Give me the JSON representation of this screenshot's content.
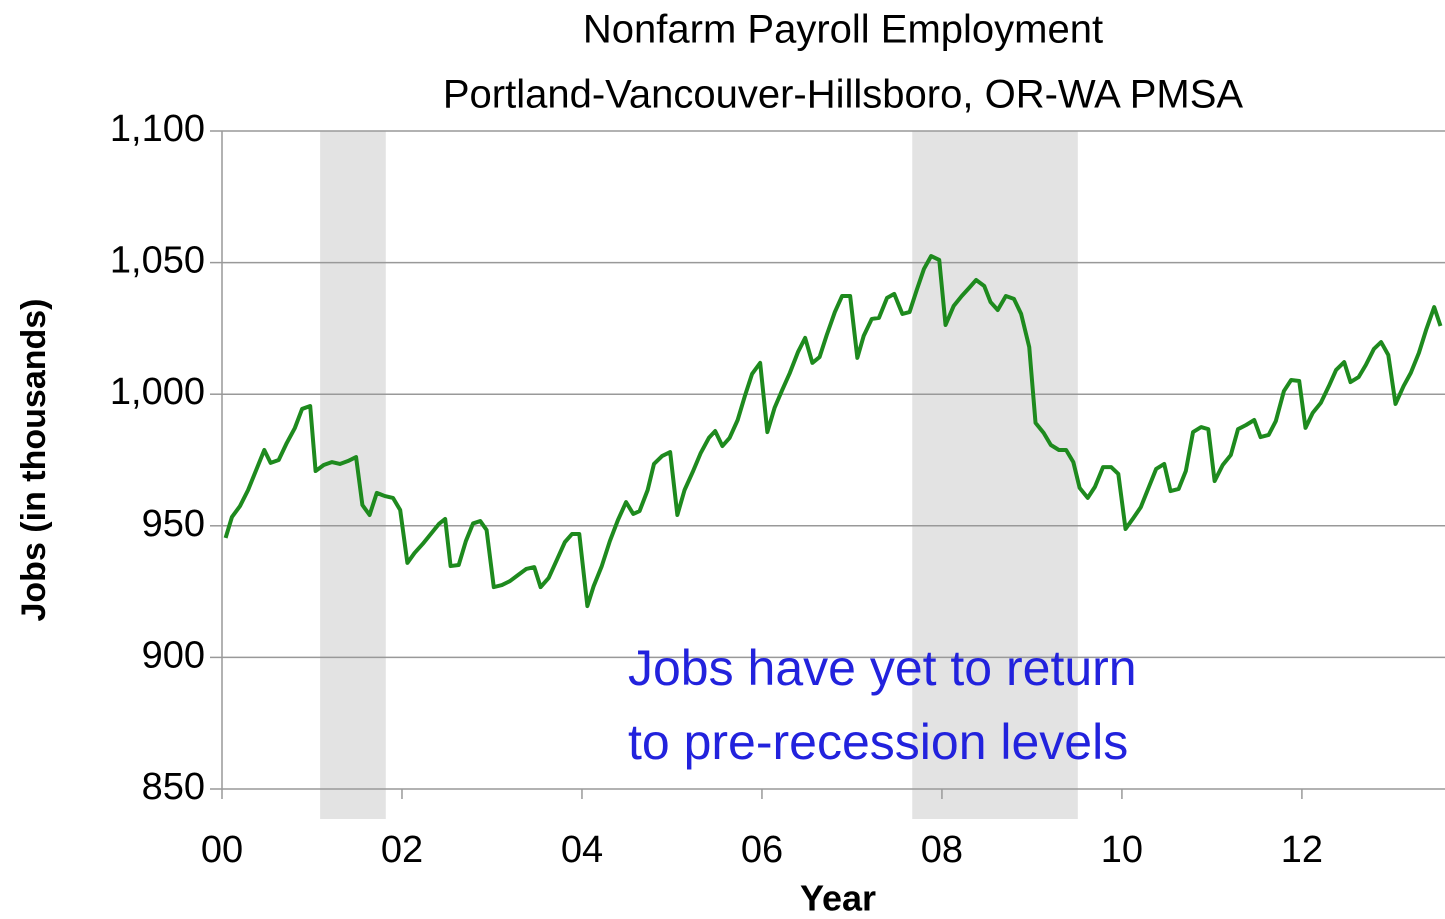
{
  "chart_data": {
    "type": "line",
    "title": "Nonfarm  Payroll Employment",
    "subtitle": "Portland-Vancouver-Hillsboro, OR-WA PMSA",
    "xlabel": "Year",
    "ylabel": "Jobs (in thousands)",
    "annotation": [
      "Jobs have yet to return",
      "to pre-recession levels"
    ],
    "annotation_color": "#2222dd",
    "grid": true,
    "xlim": [
      0,
      13.59
    ],
    "xticks": [
      {
        "value": 0,
        "label": "00"
      },
      {
        "value": 2,
        "label": "02"
      },
      {
        "value": 4,
        "label": "04"
      },
      {
        "value": 6,
        "label": "06"
      },
      {
        "value": 8,
        "label": "08"
      },
      {
        "value": 10,
        "label": "10"
      },
      {
        "value": 12,
        "label": "12"
      }
    ],
    "ylim": [
      850,
      1100
    ],
    "yticks": [
      {
        "value": 850,
        "label": "850"
      },
      {
        "value": 900,
        "label": "900"
      },
      {
        "value": 950,
        "label": "950"
      },
      {
        "value": 1000,
        "label": "1,000"
      },
      {
        "value": 1050,
        "label": "1,050"
      },
      {
        "value": 1100,
        "label": "1,100"
      }
    ],
    "shaded_regions": [
      [
        1.09,
        1.82
      ],
      [
        7.67,
        9.51
      ]
    ],
    "shade_color": "#e3e3e3",
    "x": [
      0.04,
      0.11,
      0.2,
      0.29,
      0.38,
      0.47,
      0.54,
      0.63,
      0.72,
      0.81,
      0.89,
      0.98,
      1.04,
      1.13,
      1.22,
      1.31,
      1.4,
      1.49,
      1.56,
      1.64,
      1.72,
      1.81,
      1.9,
      1.98,
      2.06,
      2.14,
      2.23,
      2.32,
      2.41,
      2.48,
      2.54,
      2.63,
      2.71,
      2.79,
      2.87,
      2.94,
      3.02,
      3.11,
      3.2,
      3.29,
      3.38,
      3.47,
      3.54,
      3.63,
      3.72,
      3.81,
      3.89,
      3.97,
      4.06,
      4.13,
      4.22,
      4.31,
      4.4,
      4.49,
      4.57,
      4.64,
      4.73,
      4.8,
      4.89,
      4.98,
      5.06,
      5.14,
      5.23,
      5.32,
      5.41,
      5.48,
      5.56,
      5.64,
      5.73,
      5.81,
      5.89,
      5.98,
      6.06,
      6.14,
      6.22,
      6.31,
      6.4,
      6.48,
      6.56,
      6.64,
      6.72,
      6.81,
      6.89,
      6.98,
      7.06,
      7.13,
      7.22,
      7.3,
      7.39,
      7.47,
      7.56,
      7.64,
      7.72,
      7.8,
      7.88,
      7.97,
      8.04,
      8.13,
      8.22,
      8.3,
      8.38,
      8.47,
      8.54,
      8.62,
      8.71,
      8.8,
      8.88,
      8.97,
      9.04,
      9.13,
      9.21,
      9.3,
      9.38,
      9.46,
      9.53,
      9.62,
      9.7,
      9.79,
      9.88,
      9.96,
      10.04,
      10.12,
      10.21,
      10.3,
      10.38,
      10.47,
      10.54,
      10.63,
      10.71,
      10.79,
      10.88,
      10.96,
      11.03,
      11.12,
      11.21,
      11.29,
      11.38,
      11.47,
      11.54,
      11.63,
      11.71,
      11.8,
      11.88,
      11.97,
      12.04,
      12.12,
      12.21,
      12.3,
      12.38,
      12.47,
      12.54,
      12.63,
      12.71,
      12.8,
      12.88,
      12.96,
      13.04,
      13.13,
      13.21,
      13.3,
      13.38,
      13.47,
      13.54
    ],
    "series": [
      {
        "name": "Jobs",
        "color": "#1e8a1e",
        "values": [
          945.4,
          953.3,
          957.5,
          963.6,
          971.2,
          978.8,
          973.9,
          975,
          981.5,
          987.2,
          994.4,
          995.5,
          970.8,
          973.1,
          974.2,
          973.5,
          974.6,
          976.1,
          957.9,
          954.1,
          962.5,
          961.3,
          960.6,
          956,
          935.9,
          939.7,
          943.1,
          946.9,
          950.7,
          952.6,
          934.7,
          935.1,
          944.2,
          950.9,
          951.8,
          948.4,
          926.7,
          927.5,
          929,
          931.3,
          933.6,
          934.3,
          926.7,
          930.2,
          937,
          943.8,
          946.9,
          946.9,
          919.5,
          927.1,
          934.7,
          944.2,
          952.2,
          959,
          954.5,
          955.6,
          963.6,
          973.5,
          976.5,
          978,
          954.1,
          963.6,
          970.4,
          977.7,
          983.4,
          986,
          980.3,
          983.4,
          990.2,
          999.3,
          1007.7,
          1011.9,
          985.6,
          994.8,
          1001.2,
          1008.1,
          1016,
          1021.4,
          1011.9,
          1014.1,
          1022.5,
          1031.2,
          1037.3,
          1037.3,
          1013.8,
          1022.1,
          1028.6,
          1029,
          1036.6,
          1038.1,
          1030.5,
          1031.2,
          1039.6,
          1047.6,
          1052.5,
          1051,
          1026.3,
          1033.5,
          1037.3,
          1040.3,
          1043.4,
          1041.1,
          1035,
          1032,
          1037.3,
          1036.2,
          1030.5,
          1017.9,
          989.1,
          985.3,
          980.7,
          978.8,
          978.8,
          974.2,
          964.4,
          960.6,
          964.8,
          972.3,
          972.3,
          969.7,
          948.8,
          952.6,
          957.1,
          964.8,
          971.6,
          973.5,
          963.2,
          964,
          970.8,
          985.6,
          987.5,
          986.7,
          967,
          973.1,
          976.9,
          986.7,
          988.3,
          990.2,
          983.7,
          984.5,
          989.8,
          1001.2,
          1005.4,
          1005,
          987.2,
          992.9,
          996.7,
          1003.1,
          1009.2,
          1012.2,
          1004.6,
          1006.5,
          1011.1,
          1017.2,
          1019.8,
          1014.9,
          996.3,
          1003.1,
          1008.1,
          1015.7,
          1024.4,
          1033.1,
          1025.9
        ]
      }
    ]
  }
}
